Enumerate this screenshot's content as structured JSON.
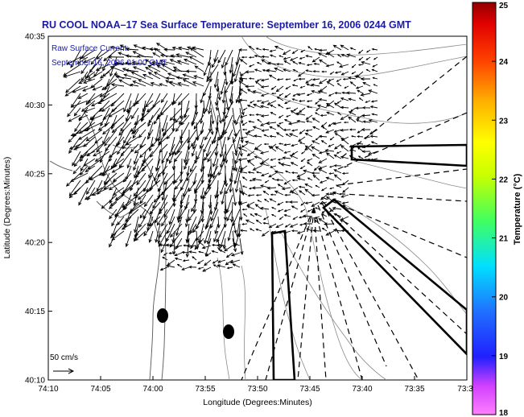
{
  "chart_data": {
    "type": "quiver",
    "title": "RU COOL  NOAA–17  Sea Surface Temperature:  September 16, 2006 0244 GMT",
    "annotation": {
      "line1": "Raw Surface Current:",
      "line2": "September 16, 2006 01:00 GMT"
    },
    "scale_label": "50 cm/s",
    "xlabel": "Longitude (Degrees:Minutes)",
    "ylabel": "Latitude (Degrees:Minutes)",
    "x_ticks": [
      "74:10",
      "74:05",
      "74:00",
      "73:55",
      "73:50",
      "73:45",
      "73:40",
      "73:35",
      "73:3"
    ],
    "y_ticks": [
      "40:10",
      "40:15",
      "40:20",
      "40:25",
      "40:30",
      "40:35"
    ],
    "xlim_minutes_west": [
      10,
      30
    ],
    "ylim_minutes_north": [
      10,
      35
    ],
    "colorbar": {
      "label": "Temperature (°C)",
      "ticks": [
        "18",
        "19",
        "20",
        "21",
        "22",
        "23",
        "24",
        "25"
      ],
      "range": [
        18,
        25
      ]
    },
    "grid": false,
    "legend": "none"
  },
  "colors": {
    "title": "#1a1aa6",
    "annotation": "#1a1aa6",
    "vectors": "#000000",
    "contours": "#888888"
  }
}
